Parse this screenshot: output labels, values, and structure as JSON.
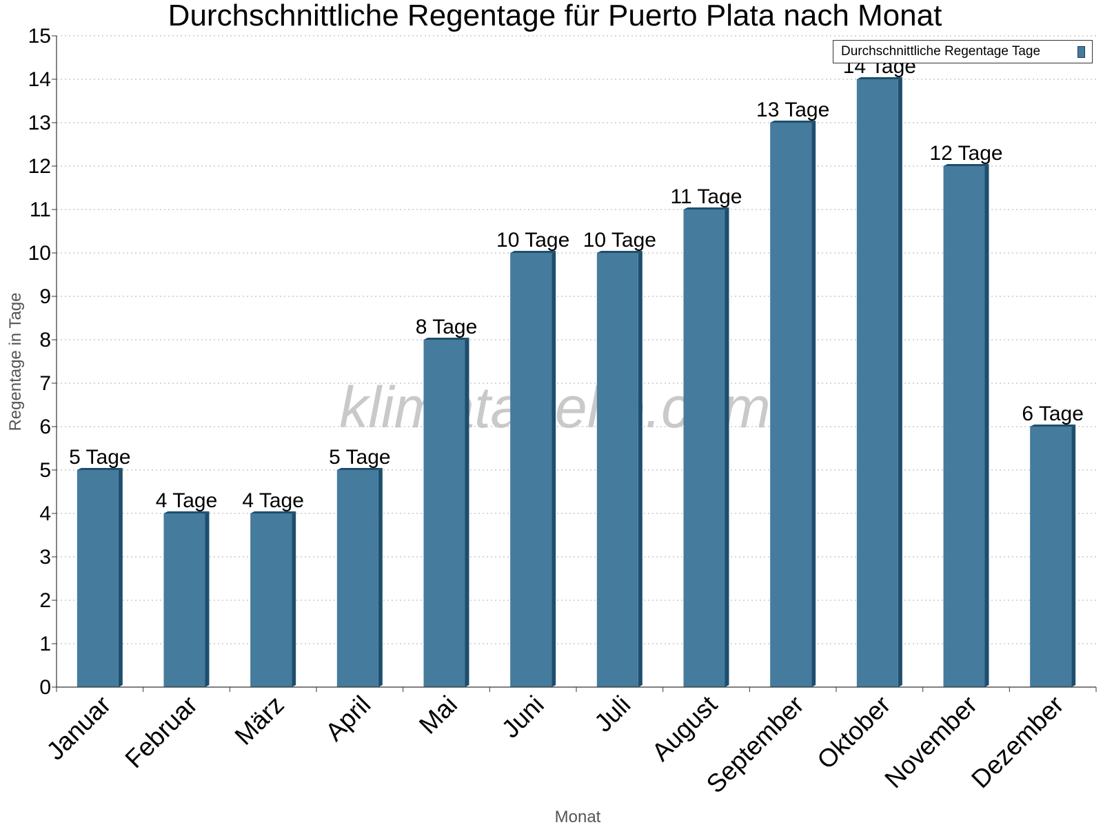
{
  "chart_data": {
    "type": "bar",
    "title": "Durchschnittliche Regentage für Puerto Plata nach Monat",
    "xlabel": "Monat",
    "ylabel": "Regentage in Tage",
    "ylim": [
      0,
      15
    ],
    "yticks": [
      "0",
      "1",
      "2",
      "3",
      "4",
      "5",
      "6",
      "7",
      "8",
      "9",
      "10",
      "11",
      "12",
      "13",
      "14",
      "15"
    ],
    "grid": true,
    "legend_position": "top-right",
    "categories": [
      "Januar",
      "Februar",
      "März",
      "April",
      "Mai",
      "Juni",
      "Juli",
      "August",
      "September",
      "Oktober",
      "November",
      "Dezember"
    ],
    "series": [
      {
        "name": "Durchschnittliche Regentage Tage",
        "values": [
          5,
          4,
          4,
          5,
          8,
          10,
          10,
          11,
          13,
          14,
          12,
          6
        ],
        "labels": [
          "5 Tage",
          "4 Tage",
          "4 Tage",
          "5 Tage",
          "8 Tage",
          "10 Tage",
          "10 Tage",
          "11 Tage",
          "13 Tage",
          "14 Tage",
          "12 Tage",
          "6 Tage"
        ]
      }
    ],
    "watermark": "klimatabelle.com"
  },
  "colors": {
    "bar_fill": "#457b9d",
    "bar_side": "#1d4e6e",
    "grid": "#c8c8c8",
    "axis": "#333333",
    "axis_label": "#555555",
    "watermark": "#bfbfbf"
  }
}
